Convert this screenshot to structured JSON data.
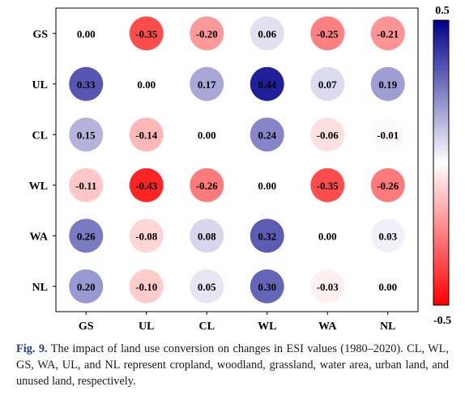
{
  "chart_data": {
    "type": "heatmap",
    "title": "",
    "xlabel": "",
    "ylabel": "",
    "x_categories": [
      "GS",
      "UL",
      "CL",
      "WL",
      "WA",
      "NL"
    ],
    "y_categories": [
      "GS",
      "UL",
      "CL",
      "WL",
      "WA",
      "NL"
    ],
    "values": [
      [
        0.0,
        -0.35,
        -0.2,
        0.06,
        -0.25,
        -0.21
      ],
      [
        0.33,
        0.0,
        0.17,
        0.44,
        0.07,
        0.19
      ],
      [
        0.15,
        -0.14,
        0.0,
        0.24,
        -0.06,
        -0.01
      ],
      [
        -0.11,
        -0.43,
        -0.26,
        0.0,
        -0.35,
        -0.26
      ],
      [
        0.26,
        -0.08,
        0.08,
        0.32,
        0.0,
        0.03
      ],
      [
        0.2,
        -0.1,
        0.05,
        0.3,
        -0.03,
        0.0
      ]
    ],
    "value_labels": [
      [
        "0.00",
        "-0.35",
        "-0.20",
        "0.06",
        "-0.25",
        "-0.21"
      ],
      [
        "0.33",
        "0.00",
        "0.17",
        "0.44",
        "0.07",
        "0.19"
      ],
      [
        "0.15",
        "-0.14",
        "0.00",
        "0.24",
        "-0.06",
        "-0.01"
      ],
      [
        "-0.11",
        "-0.43",
        "-0.26",
        "0.00",
        "-0.35",
        "-0.26"
      ],
      [
        "0.26",
        "-0.08",
        "0.08",
        "0.32",
        "0.00",
        "0.03"
      ],
      [
        "0.20",
        "-0.10",
        "0.05",
        "0.30",
        "-0.03",
        "0.00"
      ]
    ],
    "colorbar": {
      "min": -0.5,
      "max": 0.5,
      "min_label": "-0.5",
      "max_label": "0.5",
      "colors": [
        "#ff0000",
        "#ffffff",
        "#00008b"
      ]
    }
  },
  "caption": {
    "figure_label": "Fig. 9.",
    "text": "The impact of land use conversion on changes in ESI values (1980–2020). CL, WL, GS, WA, UL, and NL represent cropland, woodland, grassland, water area, urban land, and unused land, respectively."
  }
}
